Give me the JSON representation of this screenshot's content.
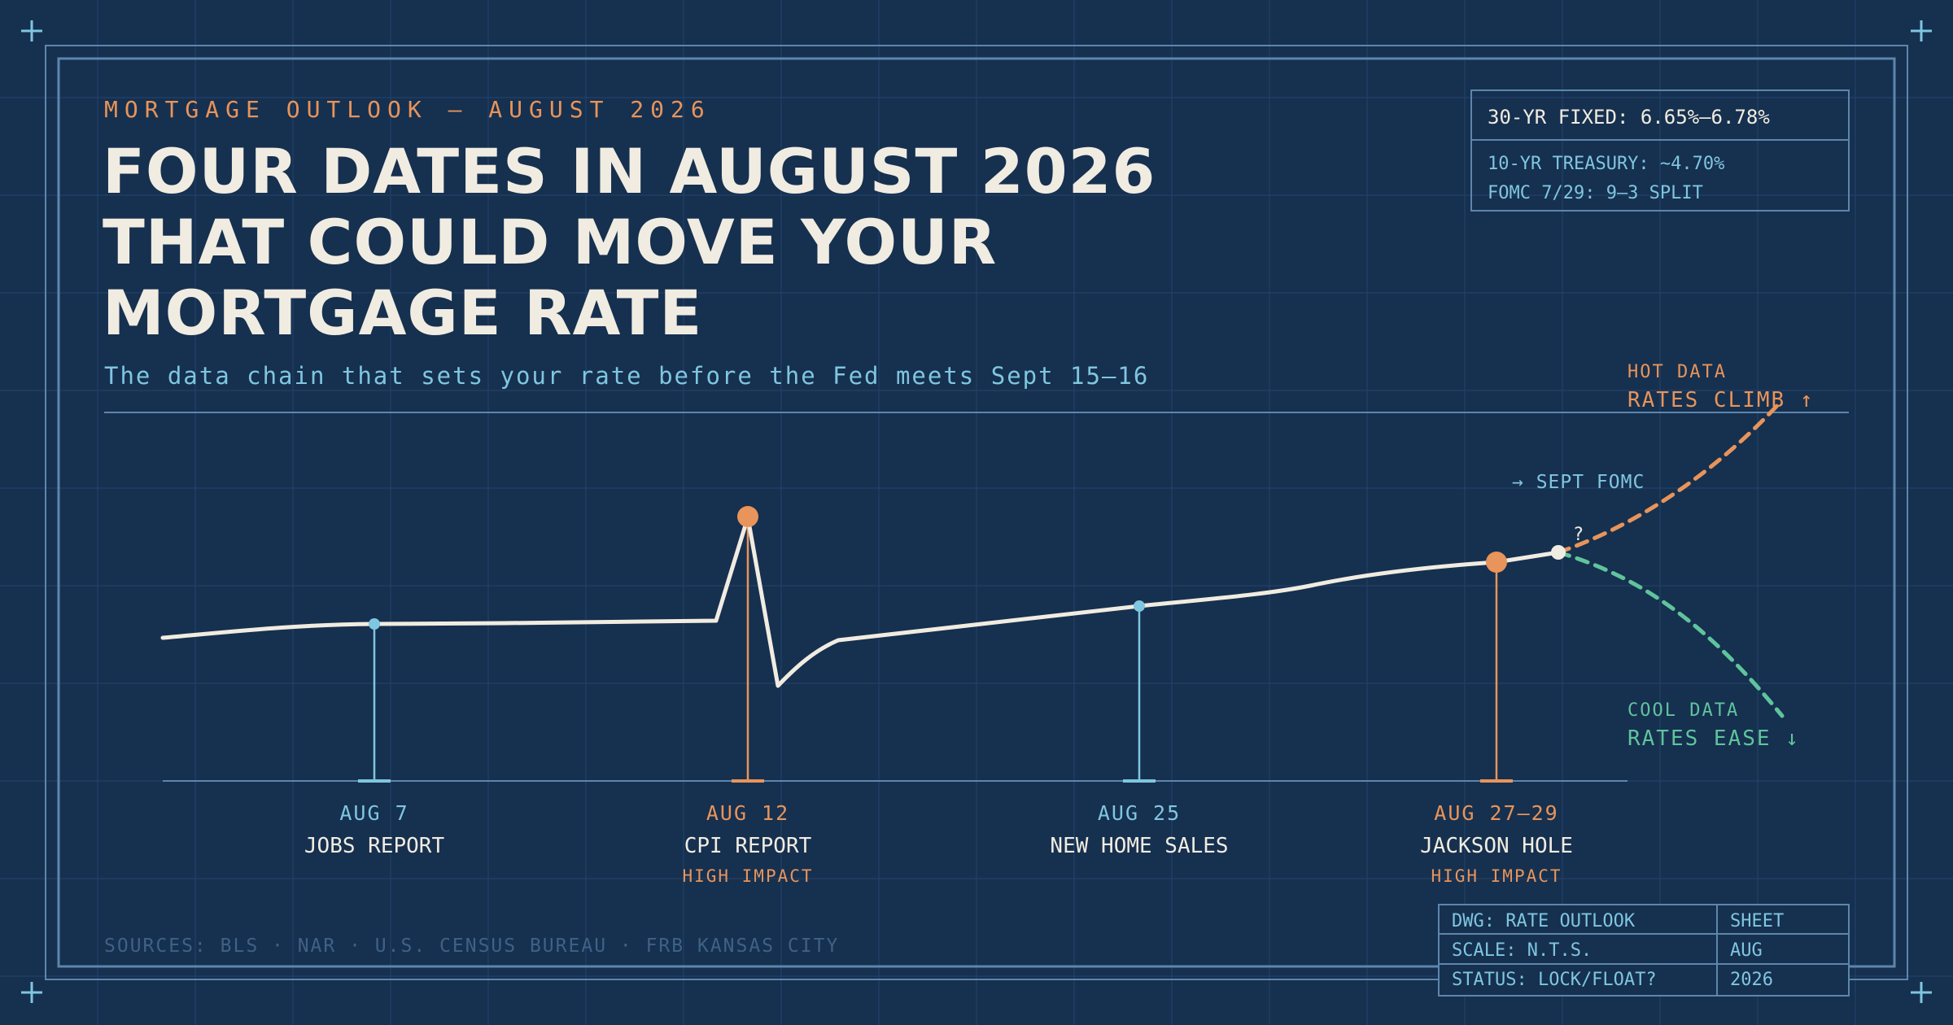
{
  "header": {
    "kicker": "MORTGAGE OUTLOOK — AUGUST 2026",
    "title_lines": [
      "FOUR DATES IN AUGUST 2026",
      "THAT COULD MOVE YOUR",
      "MORTGAGE RATE"
    ],
    "subtitle": "The data chain that sets your rate before the Fed meets Sept 15–16"
  },
  "rate_box": {
    "main": "30-YR FIXED: 6.65%–6.78%",
    "line2": "10-YR TREASURY: ~4.70%",
    "line3": "FOMC 7/29: 9–3 SPLIT"
  },
  "events": [
    {
      "date": "AUG 7",
      "name": "JOBS REPORT",
      "impact": "",
      "high": false
    },
    {
      "date": "AUG 12",
      "name": "CPI REPORT",
      "impact": "HIGH IMPACT",
      "high": true
    },
    {
      "date": "AUG 25",
      "name": "NEW HOME SALES",
      "impact": "",
      "high": false
    },
    {
      "date": "AUG 27–29",
      "name": "JACKSON HOLE",
      "impact": "HIGH IMPACT",
      "high": true
    }
  ],
  "outcomes": {
    "hot_label": "HOT DATA",
    "hot_result": "RATES CLIMB ↑",
    "cool_label": "COOL DATA",
    "cool_result": "RATES EASE ↓",
    "fomc": "→ SEPT FOMC",
    "question": "?"
  },
  "sources": "SOURCES: BLS · NAR · U.S. CENSUS BUREAU · FRB KANSAS CITY",
  "title_block": {
    "dwg": "DWG: RATE OUTLOOK",
    "sheet": "SHEET",
    "scale": "SCALE: N.T.S.",
    "month": "AUG",
    "status": "STATUS: LOCK/FLOAT?",
    "year": "2026"
  },
  "colors": {
    "background": "#16304f",
    "cream": "#f1ece1",
    "orange": "#e8945a",
    "blue": "#7fc6e0",
    "green": "#5fc49d"
  }
}
